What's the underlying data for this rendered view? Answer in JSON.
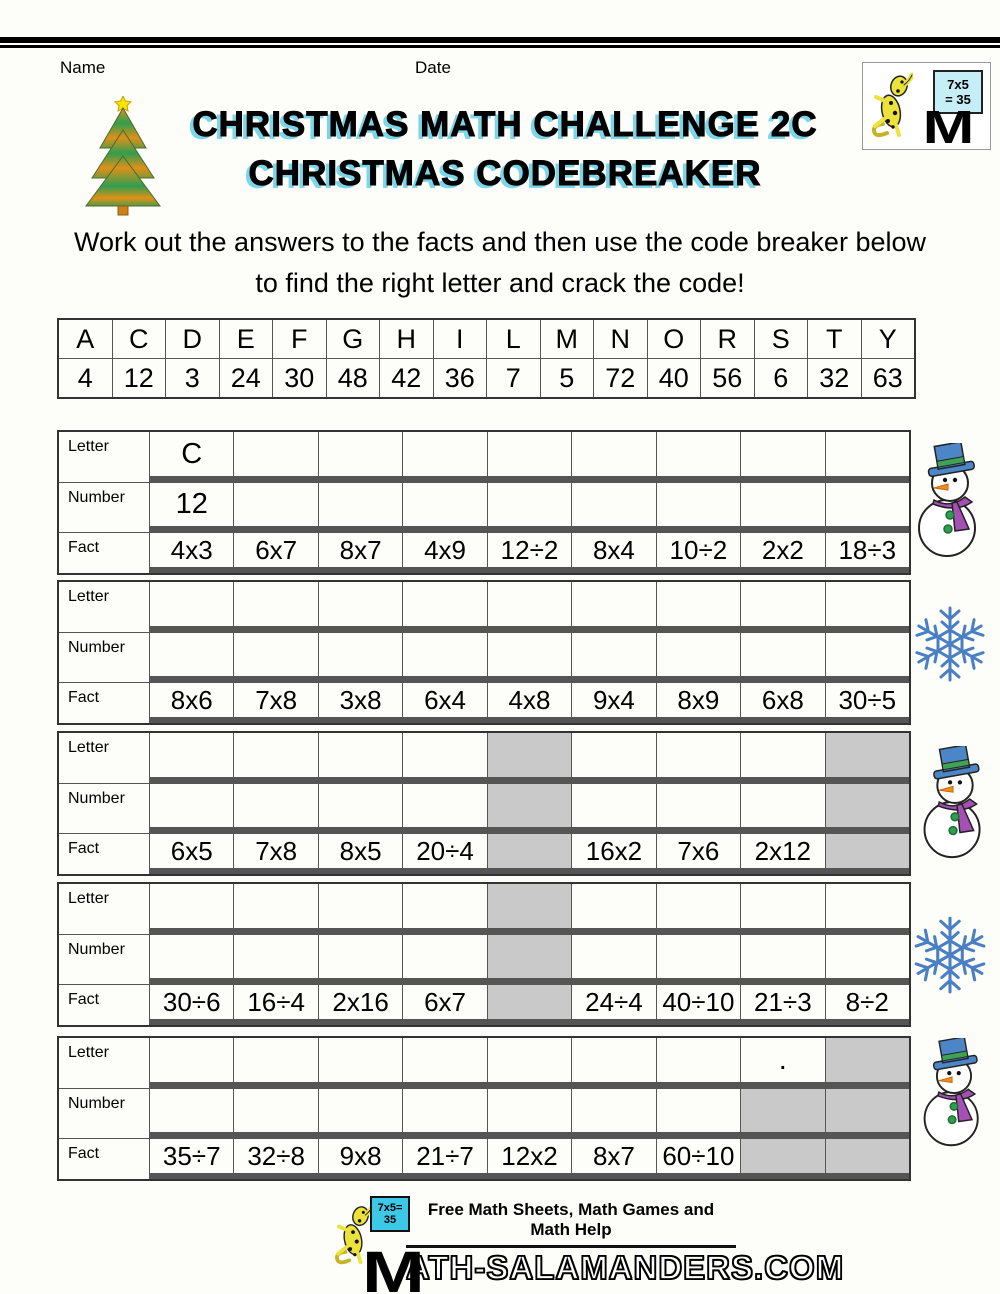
{
  "page": {
    "name_label": "Name",
    "date_label": "Date",
    "title_line1": "CHRISTMAS MATH CHALLENGE 2C",
    "title_line2": "CHRISTMAS CODEBREAKER",
    "instructions_line1": "Work out the answers to the facts and then use the code breaker below",
    "instructions_line2": "to find the right letter and crack the code!"
  },
  "corner_logo": {
    "board_line1": "7x5",
    "board_line2": "= 35",
    "monogram": "M"
  },
  "code_table": {
    "letters": [
      "A",
      "C",
      "D",
      "E",
      "F",
      "G",
      "H",
      "I",
      "L",
      "M",
      "N",
      "O",
      "R",
      "S",
      "T",
      "Y"
    ],
    "numbers": [
      "4",
      "12",
      "3",
      "24",
      "30",
      "48",
      "42",
      "36",
      "7",
      "5",
      "72",
      "40",
      "56",
      "6",
      "32",
      "63"
    ]
  },
  "row_labels": {
    "letter": "Letter",
    "number": "Number",
    "fact": "Fact"
  },
  "puzzles": [
    {
      "letters": [
        "C",
        "",
        "",
        "",
        "",
        "",
        "",
        "",
        ""
      ],
      "numbers": [
        "12",
        "",
        "",
        "",
        "",
        "",
        "",
        "",
        ""
      ],
      "facts": [
        "4x3",
        "6x7",
        "8x7",
        "4x9",
        "12÷2",
        "8x4",
        "10÷2",
        "2x2",
        "18÷3"
      ],
      "gray": {
        "letter": [],
        "number": [],
        "fact": []
      }
    },
    {
      "letters": [
        "",
        "",
        "",
        "",
        "",
        "",
        "",
        "",
        ""
      ],
      "numbers": [
        "",
        "",
        "",
        "",
        "",
        "",
        "",
        "",
        ""
      ],
      "facts": [
        "8x6",
        "7x8",
        "3x8",
        "6x4",
        "4x8",
        "9x4",
        "8x9",
        "6x8",
        "30÷5"
      ],
      "gray": {
        "letter": [],
        "number": [],
        "fact": []
      }
    },
    {
      "letters": [
        "",
        "",
        "",
        "",
        "",
        "",
        "",
        "",
        ""
      ],
      "numbers": [
        "",
        "",
        "",
        "",
        "",
        "",
        "",
        "",
        ""
      ],
      "facts": [
        "6x5",
        "7x8",
        "8x5",
        "20÷4",
        "",
        "16x2",
        "7x6",
        "2x12",
        ""
      ],
      "gray": {
        "letter": [
          4,
          8
        ],
        "number": [
          4,
          8
        ],
        "fact": [
          4,
          8
        ]
      }
    },
    {
      "letters": [
        "",
        "",
        "",
        "",
        "",
        "",
        "",
        "",
        ""
      ],
      "numbers": [
        "",
        "",
        "",
        "",
        "",
        "",
        "",
        "",
        ""
      ],
      "facts": [
        "30÷6",
        "16÷4",
        "2x16",
        "6x7",
        "",
        "24÷4",
        "40÷10",
        "21÷3",
        "8÷2"
      ],
      "gray": {
        "letter": [
          4
        ],
        "number": [
          4
        ],
        "fact": [
          4
        ]
      }
    },
    {
      "letters": [
        "",
        "",
        "",
        "",
        "",
        "",
        "",
        ".",
        ""
      ],
      "numbers": [
        "",
        "",
        "",
        "",
        "",
        "",
        "",
        "",
        ""
      ],
      "facts": [
        "35÷7",
        "32÷8",
        "9x8",
        "21÷7",
        "12x2",
        "8x7",
        "60÷10",
        "",
        ""
      ],
      "gray": {
        "letter": [
          8
        ],
        "number": [
          7,
          8
        ],
        "fact": [
          7,
          8
        ]
      }
    }
  ],
  "decorations": [
    "snowman",
    "snowflake",
    "snowman",
    "snowflake",
    "snowman"
  ],
  "footer": {
    "tagline": "Free Math Sheets, Math Games and Math Help",
    "site_monogram": "M",
    "site_rest": "ATH-SALAMANDERS.COM",
    "board_line1": "7x5=",
    "board_line2": "35"
  },
  "colors": {
    "title_shadow": "#7cd6ea",
    "gray_cell": "#c9c9c9",
    "board_cyan": "#3cc9e8",
    "snowflake_blue": "#4b7fc4",
    "tree_orange": "#e09018",
    "tree_green": "#2f9e4f"
  }
}
